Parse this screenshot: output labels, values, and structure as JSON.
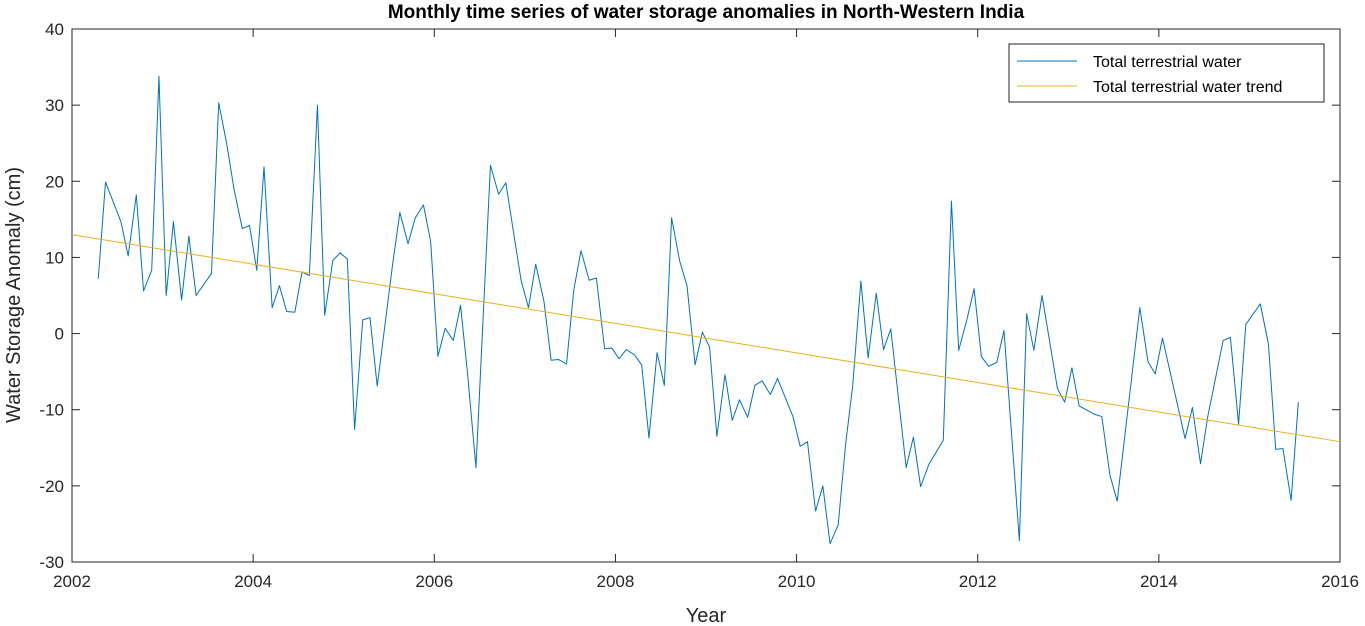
{
  "chart_data": {
    "type": "line",
    "title": "Monthly time series of water storage anomalies in North-Western India",
    "xlabel": "Year",
    "ylabel": "Water Storage Anomaly (cm)",
    "xlim": [
      2002,
      2016
    ],
    "ylim": [
      -30,
      40
    ],
    "xticks": [
      2002,
      2004,
      2006,
      2008,
      2010,
      2012,
      2014,
      2016
    ],
    "yticks": [
      -30,
      -20,
      -10,
      0,
      10,
      20,
      30,
      40
    ],
    "grid": false,
    "legend_position": "top-right",
    "series": [
      {
        "name": "Total terrestrial water",
        "color": "#0072BD",
        "x": [
          2002.29,
          2002.37,
          2002.54,
          2002.62,
          2002.71,
          2002.79,
          2002.88,
          2002.96,
          2003.04,
          2003.12,
          2003.21,
          2003.29,
          2003.37,
          2003.54,
          2003.62,
          2003.71,
          2003.79,
          2003.88,
          2003.96,
          2004.04,
          2004.12,
          2004.21,
          2004.29,
          2004.37,
          2004.46,
          2004.54,
          2004.62,
          2004.71,
          2004.79,
          2004.88,
          2004.96,
          2005.04,
          2005.12,
          2005.21,
          2005.29,
          2005.37,
          2005.54,
          2005.62,
          2005.71,
          2005.79,
          2005.88,
          2005.96,
          2006.04,
          2006.12,
          2006.21,
          2006.29,
          2006.37,
          2006.46,
          2006.62,
          2006.71,
          2006.79,
          2006.88,
          2006.96,
          2007.04,
          2007.12,
          2007.21,
          2007.29,
          2007.37,
          2007.46,
          2007.54,
          2007.62,
          2007.71,
          2007.79,
          2007.88,
          2007.96,
          2008.04,
          2008.12,
          2008.21,
          2008.29,
          2008.37,
          2008.46,
          2008.54,
          2008.62,
          2008.71,
          2008.79,
          2008.88,
          2008.96,
          2009.04,
          2009.12,
          2009.21,
          2009.29,
          2009.37,
          2009.46,
          2009.54,
          2009.62,
          2009.71,
          2009.79,
          2009.96,
          2010.04,
          2010.12,
          2010.21,
          2010.29,
          2010.37,
          2010.46,
          2010.54,
          2010.62,
          2010.71,
          2010.79,
          2010.88,
          2010.96,
          2011.04,
          2011.21,
          2011.29,
          2011.37,
          2011.46,
          2011.62,
          2011.71,
          2011.79,
          2011.88,
          2011.96,
          2012.04,
          2012.12,
          2012.21,
          2012.29,
          2012.46,
          2012.54,
          2012.62,
          2012.71,
          2012.88,
          2012.96,
          2013.04,
          2013.12,
          2013.29,
          2013.37,
          2013.46,
          2013.54,
          2013.79,
          2013.88,
          2013.96,
          2014.04,
          2014.29,
          2014.37,
          2014.46,
          2014.54,
          2014.71,
          2014.79,
          2014.88,
          2014.96,
          2015.12,
          2015.21,
          2015.29,
          2015.37,
          2015.46,
          2015.54
        ],
        "values": [
          7.2,
          19.9,
          14.7,
          10.2,
          18.2,
          5.6,
          8.3,
          33.8,
          5.0,
          14.7,
          4.4,
          12.8,
          5.0,
          7.9,
          30.3,
          24.8,
          18.9,
          13.8,
          14.2,
          8.3,
          21.9,
          3.4,
          6.3,
          2.9,
          2.8,
          8.1,
          7.6,
          30.0,
          2.4,
          9.6,
          10.6,
          9.8,
          -12.6,
          1.8,
          2.1,
          -6.9,
          9.1,
          15.9,
          11.8,
          15.2,
          16.9,
          12.1,
          -3.0,
          0.7,
          -0.9,
          3.7,
          -5.6,
          -17.6,
          22.1,
          18.3,
          19.8,
          12.9,
          6.9,
          3.4,
          9.1,
          4.3,
          -3.5,
          -3.4,
          -4.0,
          5.7,
          10.9,
          7.0,
          7.3,
          -2.0,
          -1.9,
          -3.3,
          -2.1,
          -2.8,
          -4.1,
          -13.7,
          -2.5,
          -6.8,
          15.2,
          9.5,
          6.3,
          -4.1,
          0.2,
          -1.8,
          -13.5,
          -5.4,
          -11.4,
          -8.7,
          -11.0,
          -6.8,
          -6.2,
          -8.0,
          -5.9,
          -10.9,
          -14.8,
          -14.2,
          -23.3,
          -20.0,
          -27.6,
          -25.1,
          -14.7,
          -6.8,
          6.9,
          -3.2,
          5.3,
          -2.1,
          0.6,
          -17.6,
          -13.6,
          -20.1,
          -17.2,
          -14.0,
          17.4,
          -2.2,
          1.8,
          5.9,
          -3.0,
          -4.3,
          -3.8,
          0.4,
          -27.2,
          2.6,
          -2.2,
          5.0,
          -7.2,
          -9.0,
          -4.5,
          -9.5,
          -10.6,
          -10.9,
          -18.6,
          -22.0,
          3.4,
          -3.7,
          -5.3,
          -0.6,
          -13.8,
          -9.7,
          -17.1,
          -10.9,
          -0.9,
          -0.5,
          -11.9,
          1.2,
          3.9,
          -1.4,
          -15.2,
          -15.1,
          -21.9,
          -9.0
        ]
      },
      {
        "name": "Total terrestrial water trend",
        "color": "#EDB120",
        "x": [
          2002,
          2016
        ],
        "values": [
          13.0,
          -14.2
        ]
      }
    ]
  }
}
